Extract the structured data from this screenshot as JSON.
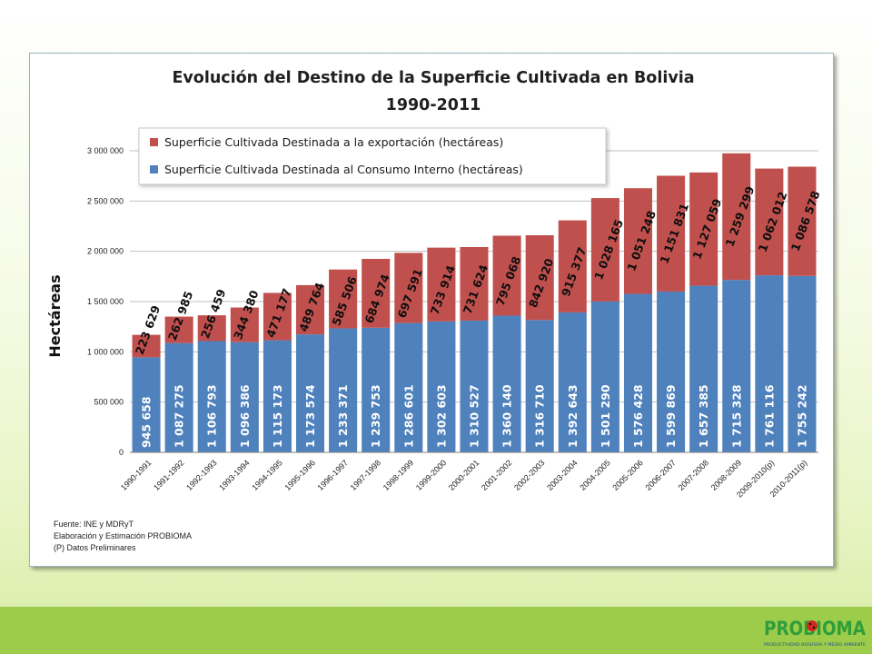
{
  "chart_data": {
    "type": "bar",
    "stacked": true,
    "title": "Evolución del Destino  de la Superficie Cultivada en Bolivia",
    "subtitle": "1990-2011",
    "ylabel": "Hectáreas",
    "xlabel": "",
    "ylim": [
      0,
      3000000
    ],
    "yticks": [
      "0",
      "500 000",
      "1 000 000",
      "1 500 000",
      "2 000 000",
      "2 500 000",
      "3 000 000"
    ],
    "ytick_values": [
      0,
      500000,
      1000000,
      1500000,
      2000000,
      2500000,
      3000000
    ],
    "grid": true,
    "legend_position": "top",
    "categories": [
      "1990-1991",
      "1991-1992",
      "1992-1993",
      "1993-1994",
      "1994-1995",
      "1995-1996",
      "1996-1997",
      "1997-1998",
      "1998-1999",
      "1999-2000",
      "2000-2001",
      "2001-2002",
      "2002-2003",
      "2003-2004",
      "2004-2005",
      "2005-2006",
      "2006-2007",
      "2007-2008",
      "2008-2009",
      "2009-2010(p)",
      "2010-2011(p)"
    ],
    "series": [
      {
        "name": "Superficie Cultivada Destinada al Consumo Interno (hectáreas)",
        "color": "#4f81bd",
        "values": [
          945658,
          1087275,
          1106793,
          1096386,
          1115173,
          1173574,
          1233371,
          1239753,
          1286601,
          1302603,
          1310527,
          1360140,
          1316710,
          1392643,
          1501290,
          1576428,
          1599869,
          1657385,
          1715328,
          1761116,
          1755242
        ],
        "labels": [
          "945 658",
          "1 087 275",
          "1 106 793",
          "1 096 386",
          "1 115 173",
          "1 173 574",
          "1 233 371",
          "1 239 753",
          "1 286 601",
          "1 302 603",
          "1 310 527",
          "1 360 140",
          "1 316 710",
          "1 392 643",
          "1 501 290",
          "1 576 428",
          "1 599 869",
          "1 657 385",
          "1 715 328",
          "1 761 116",
          "1 755 242"
        ]
      },
      {
        "name": "Superficie Cultivada Destinada a la exportación (hectáreas)",
        "color": "#c0504d",
        "values": [
          223629,
          262985,
          256459,
          344380,
          471177,
          489764,
          585506,
          684974,
          697591,
          733914,
          731624,
          795068,
          842920,
          915377,
          1028165,
          1051248,
          1151831,
          1127059,
          1259299,
          1062012,
          1086578
        ],
        "labels": [
          "223 629",
          "262 985",
          "256 459",
          "344 380",
          "471 177",
          "489 764",
          "585 506",
          "684 974",
          "697 591",
          "733 914",
          "731 624",
          "795 068",
          "842 920",
          "915 377",
          "1 028 165",
          "1 051 248",
          "1 151 831",
          "1 127 059",
          "1 259 299",
          "1 062 012",
          "1 086 578"
        ]
      }
    ]
  },
  "source": {
    "line1": "Fuente: INE y MDRyT",
    "line2": "Elaboración y Estimación PROBIOMA",
    "line3": "(P) Datos Preliminares"
  },
  "logo": {
    "name": "PROBIOMA",
    "tagline": "PRODUCTIVIDAD BIOSFERA Y MEDIO AMBIENTE",
    "green": "#2f9e3a",
    "blue": "#1f4e8c"
  }
}
